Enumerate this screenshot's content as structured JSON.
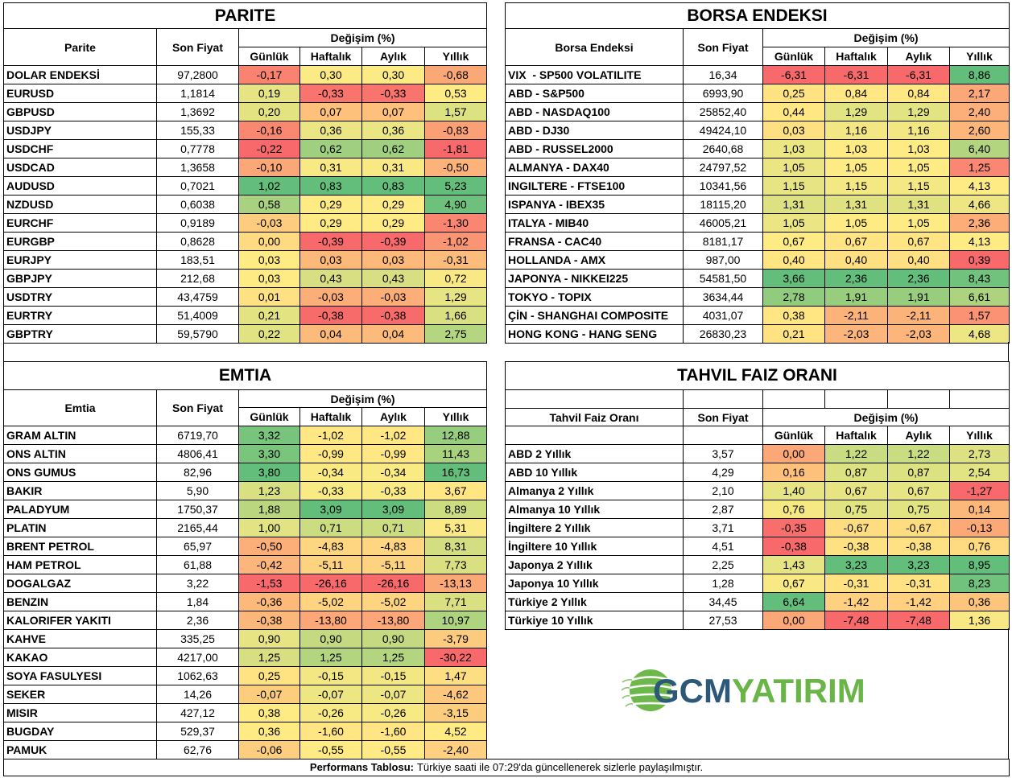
{
  "color_scale": {
    "min": "#F8696B",
    "mid": "#FFEB84",
    "max": "#63BE7B"
  },
  "parite": {
    "title": "PARITE",
    "headers": {
      "name": "Parite",
      "price": "Son Fiyat",
      "change": "Değişim (%)",
      "daily": "Günlük",
      "weekly": "Haftalık",
      "monthly": "Aylık",
      "yearly": "Yıllık"
    },
    "rows": [
      {
        "name": "DOLAR ENDEKSİ",
        "price": "97,2800",
        "daily": "-0,17",
        "weekly": "0,30",
        "monthly": "0,30",
        "yearly": "-0,68"
      },
      {
        "name": "EURUSD",
        "price": "1,1814",
        "daily": "0,19",
        "weekly": "-0,33",
        "monthly": "-0,33",
        "yearly": "0,53"
      },
      {
        "name": "GBPUSD",
        "price": "1,3692",
        "daily": "0,20",
        "weekly": "0,07",
        "monthly": "0,07",
        "yearly": "1,57"
      },
      {
        "name": "USDJPY",
        "price": "155,33",
        "daily": "-0,16",
        "weekly": "0,36",
        "monthly": "0,36",
        "yearly": "-0,83"
      },
      {
        "name": "USDCHF",
        "price": "0,7778",
        "daily": "-0,22",
        "weekly": "0,62",
        "monthly": "0,62",
        "yearly": "-1,81"
      },
      {
        "name": "USDCAD",
        "price": "1,3658",
        "daily": "-0,10",
        "weekly": "0,31",
        "monthly": "0,31",
        "yearly": "-0,50"
      },
      {
        "name": "AUDUSD",
        "price": "0,7021",
        "daily": "1,02",
        "weekly": "0,83",
        "monthly": "0,83",
        "yearly": "5,23"
      },
      {
        "name": "NZDUSD",
        "price": "0,6038",
        "daily": "0,58",
        "weekly": "0,29",
        "monthly": "0,29",
        "yearly": "4,90"
      },
      {
        "name": "EURCHF",
        "price": "0,9189",
        "daily": "-0,03",
        "weekly": "0,29",
        "monthly": "0,29",
        "yearly": "-1,30"
      },
      {
        "name": "EURGBP",
        "price": "0,8628",
        "daily": "0,00",
        "weekly": "-0,39",
        "monthly": "-0,39",
        "yearly": "-1,02"
      },
      {
        "name": "EURJPY",
        "price": "183,51",
        "daily": "0,03",
        "weekly": "0,03",
        "monthly": "0,03",
        "yearly": "-0,31"
      },
      {
        "name": "GBPJPY",
        "price": "212,68",
        "daily": "0,03",
        "weekly": "0,43",
        "monthly": "0,43",
        "yearly": "0,72"
      },
      {
        "name": "USDTRY",
        "price": "43,4759",
        "daily": "0,01",
        "weekly": "-0,03",
        "monthly": "-0,03",
        "yearly": "1,29"
      },
      {
        "name": "EURTRY",
        "price": "51,4009",
        "daily": "0,21",
        "weekly": "-0,38",
        "monthly": "-0,38",
        "yearly": "1,66"
      },
      {
        "name": "GBPTRY",
        "price": "59,5790",
        "daily": "0,22",
        "weekly": "0,04",
        "monthly": "0,04",
        "yearly": "2,75"
      }
    ]
  },
  "borsa": {
    "title": "BORSA ENDEKSI",
    "headers": {
      "name": "Borsa Endeksi",
      "price": "Son Fiyat",
      "change": "Değişim (%)",
      "daily": "Günlük",
      "weekly": "Haftalık",
      "monthly": "Aylık",
      "yearly": "Yıllık"
    },
    "rows": [
      {
        "name": "VIX  - SP500 VOLATILITE",
        "price": "16,34",
        "daily": "-6,31",
        "weekly": "-6,31",
        "monthly": "-6,31",
        "yearly": "8,86"
      },
      {
        "name": "ABD - S&P500",
        "price": "6993,90",
        "daily": "0,25",
        "weekly": "0,84",
        "monthly": "0,84",
        "yearly": "2,17"
      },
      {
        "name": "ABD - NASDAQ100",
        "price": "25852,40",
        "daily": "0,44",
        "weekly": "1,29",
        "monthly": "1,29",
        "yearly": "2,40"
      },
      {
        "name": "ABD - DJ30",
        "price": "49424,10",
        "daily": "0,03",
        "weekly": "1,16",
        "monthly": "1,16",
        "yearly": "2,60"
      },
      {
        "name": "ABD - RUSSEL2000",
        "price": "2640,68",
        "daily": "1,03",
        "weekly": "1,03",
        "monthly": "1,03",
        "yearly": "6,40"
      },
      {
        "name": "ALMANYA - DAX40",
        "price": "24797,52",
        "daily": "1,05",
        "weekly": "1,05",
        "monthly": "1,05",
        "yearly": "1,25"
      },
      {
        "name": "INGILTERE - FTSE100",
        "price": "10341,56",
        "daily": "1,15",
        "weekly": "1,15",
        "monthly": "1,15",
        "yearly": "4,13"
      },
      {
        "name": "ISPANYA - IBEX35",
        "price": "18115,20",
        "daily": "1,31",
        "weekly": "1,31",
        "monthly": "1,31",
        "yearly": "4,66"
      },
      {
        "name": "ITALYA - MIB40",
        "price": "46005,21",
        "daily": "1,05",
        "weekly": "1,05",
        "monthly": "1,05",
        "yearly": "2,36"
      },
      {
        "name": "FRANSA - CAC40",
        "price": "8181,17",
        "daily": "0,67",
        "weekly": "0,67",
        "monthly": "0,67",
        "yearly": "4,13"
      },
      {
        "name": "HOLLANDA - AMX",
        "price": "987,00",
        "daily": "0,40",
        "weekly": "0,40",
        "monthly": "0,40",
        "yearly": "0,39"
      },
      {
        "name": "JAPONYA - NIKKEI225",
        "price": "54581,50",
        "daily": "3,66",
        "weekly": "2,36",
        "monthly": "2,36",
        "yearly": "8,43"
      },
      {
        "name": "TOKYO - TOPIX",
        "price": "3634,44",
        "daily": "2,78",
        "weekly": "1,91",
        "monthly": "1,91",
        "yearly": "6,61"
      },
      {
        "name": "ÇİN - SHANGHAI COMPOSITE",
        "price": "4031,07",
        "daily": "0,38",
        "weekly": "-2,11",
        "monthly": "-2,11",
        "yearly": "1,57"
      },
      {
        "name": "HONG KONG - HANG SENG",
        "price": "26830,23",
        "daily": "0,21",
        "weekly": "-2,03",
        "monthly": "-2,03",
        "yearly": "4,68"
      }
    ]
  },
  "emtia": {
    "title": "EMTIA",
    "headers": {
      "name": "Emtia",
      "price": "Son Fiyat",
      "change": "Değişim (%)",
      "daily": "Günlük",
      "weekly": "Haftalık",
      "monthly": "Aylık",
      "yearly": "Yıllık"
    },
    "rows": [
      {
        "name": "GRAM ALTIN",
        "price": "6719,70",
        "daily": "3,32",
        "weekly": "-1,02",
        "monthly": "-1,02",
        "yearly": "12,88"
      },
      {
        "name": "ONS ALTIN",
        "price": "4806,41",
        "daily": "3,30",
        "weekly": "-0,99",
        "monthly": "-0,99",
        "yearly": "11,43"
      },
      {
        "name": "ONS GUMUS",
        "price": "82,96",
        "daily": "3,80",
        "weekly": "-0,34",
        "monthly": "-0,34",
        "yearly": "16,73"
      },
      {
        "name": "BAKIR",
        "price": "5,90",
        "daily": "1,23",
        "weekly": "-0,33",
        "monthly": "-0,33",
        "yearly": "3,67"
      },
      {
        "name": "PALADYUM",
        "price": "1750,37",
        "daily": "1,88",
        "weekly": "3,09",
        "monthly": "3,09",
        "yearly": "8,89"
      },
      {
        "name": "PLATIN",
        "price": "2165,44",
        "daily": "1,00",
        "weekly": "0,71",
        "monthly": "0,71",
        "yearly": "5,31"
      },
      {
        "name": "BRENT PETROL",
        "price": "65,97",
        "daily": "-0,50",
        "weekly": "-4,83",
        "monthly": "-4,83",
        "yearly": "8,31"
      },
      {
        "name": "HAM PETROL",
        "price": "61,88",
        "daily": "-0,42",
        "weekly": "-5,11",
        "monthly": "-5,11",
        "yearly": "7,73"
      },
      {
        "name": "DOGALGAZ",
        "price": "3,22",
        "daily": "-1,53",
        "weekly": "-26,16",
        "monthly": "-26,16",
        "yearly": "-13,13"
      },
      {
        "name": "BENZIN",
        "price": "1,84",
        "daily": "-0,36",
        "weekly": "-5,02",
        "monthly": "-5,02",
        "yearly": "7,71"
      },
      {
        "name": "KALORIFER YAKITI",
        "price": "2,36",
        "daily": "-0,38",
        "weekly": "-13,80",
        "monthly": "-13,80",
        "yearly": "10,97"
      },
      {
        "name": "KAHVE",
        "price": "335,25",
        "daily": "0,90",
        "weekly": "0,90",
        "monthly": "0,90",
        "yearly": "-3,79"
      },
      {
        "name": "KAKAO",
        "price": "4217,00",
        "daily": "1,25",
        "weekly": "1,25",
        "monthly": "1,25",
        "yearly": "-30,22"
      },
      {
        "name": "SOYA FASULYESI",
        "price": "1062,63",
        "daily": "0,25",
        "weekly": "-0,15",
        "monthly": "-0,15",
        "yearly": "1,47"
      },
      {
        "name": "SEKER",
        "price": "14,26",
        "daily": "-0,07",
        "weekly": "-0,07",
        "monthly": "-0,07",
        "yearly": "-4,62"
      },
      {
        "name": "MISIR",
        "price": "427,12",
        "daily": "0,38",
        "weekly": "-0,26",
        "monthly": "-0,26",
        "yearly": "-3,15"
      },
      {
        "name": "BUGDAY",
        "price": "529,37",
        "daily": "0,36",
        "weekly": "-1,60",
        "monthly": "-1,60",
        "yearly": "4,52"
      },
      {
        "name": "PAMUK",
        "price": "62,76",
        "daily": "-0,06",
        "weekly": "-0,55",
        "monthly": "-0,55",
        "yearly": "-2,40"
      }
    ]
  },
  "tahvil": {
    "title": "TAHVIL FAIZ ORANI",
    "headers": {
      "name": "Tahvil Faiz Oranı",
      "price": "Son Fiyat",
      "change": "Değişim (%)",
      "daily": "Günlük",
      "weekly": "Haftalık",
      "monthly": "Aylık",
      "yearly": "Yıllık"
    },
    "rows": [
      {
        "name": "ABD 2 Yıllık",
        "price": "3,57",
        "daily": "0,00",
        "weekly": "1,22",
        "monthly": "1,22",
        "yearly": "2,73"
      },
      {
        "name": "ABD 10 Yıllık",
        "price": "4,29",
        "daily": "0,16",
        "weekly": "0,87",
        "monthly": "0,87",
        "yearly": "2,54"
      },
      {
        "name": "Almanya 2 Yıllık",
        "price": "2,10",
        "daily": "1,40",
        "weekly": "0,67",
        "monthly": "0,67",
        "yearly": "-1,27"
      },
      {
        "name": "Almanya 10 Yıllık",
        "price": "2,87",
        "daily": "0,76",
        "weekly": "0,75",
        "monthly": "0,75",
        "yearly": "0,14"
      },
      {
        "name": "İngiltere 2 Yıllık",
        "price": "3,71",
        "daily": "-0,35",
        "weekly": "-0,67",
        "monthly": "-0,67",
        "yearly": "-0,13"
      },
      {
        "name": "İngiltere 10 Yıllık",
        "price": "4,51",
        "daily": "-0,38",
        "weekly": "-0,38",
        "monthly": "-0,38",
        "yearly": "0,76"
      },
      {
        "name": "Japonya 2 Yıllık",
        "price": "2,25",
        "daily": "1,43",
        "weekly": "3,23",
        "monthly": "3,23",
        "yearly": "8,95"
      },
      {
        "name": "Japonya 10 Yıllık",
        "price": "1,28",
        "daily": "0,67",
        "weekly": "-0,31",
        "monthly": "-0,31",
        "yearly": "8,23"
      },
      {
        "name": "Türkiye 2 Yıllık",
        "price": "34,45",
        "daily": "6,64",
        "weekly": "-1,42",
        "monthly": "-1,42",
        "yearly": "0,36"
      },
      {
        "name": "Türkiye 10 Yıllık",
        "price": "27,53",
        "daily": "0,00",
        "weekly": "-7,48",
        "monthly": "-7,48",
        "yearly": "1,36"
      }
    ]
  },
  "footer": {
    "label": "Performans Tablosu:",
    "text": "Türkiye saati ile 07:29'da güncellenerek sizlerle paylaşılmıştır."
  },
  "logo": {
    "part1": "GCM",
    "part2": "YATIRIM",
    "color_dark": "#2E5877",
    "color_green": "#6AB547"
  }
}
